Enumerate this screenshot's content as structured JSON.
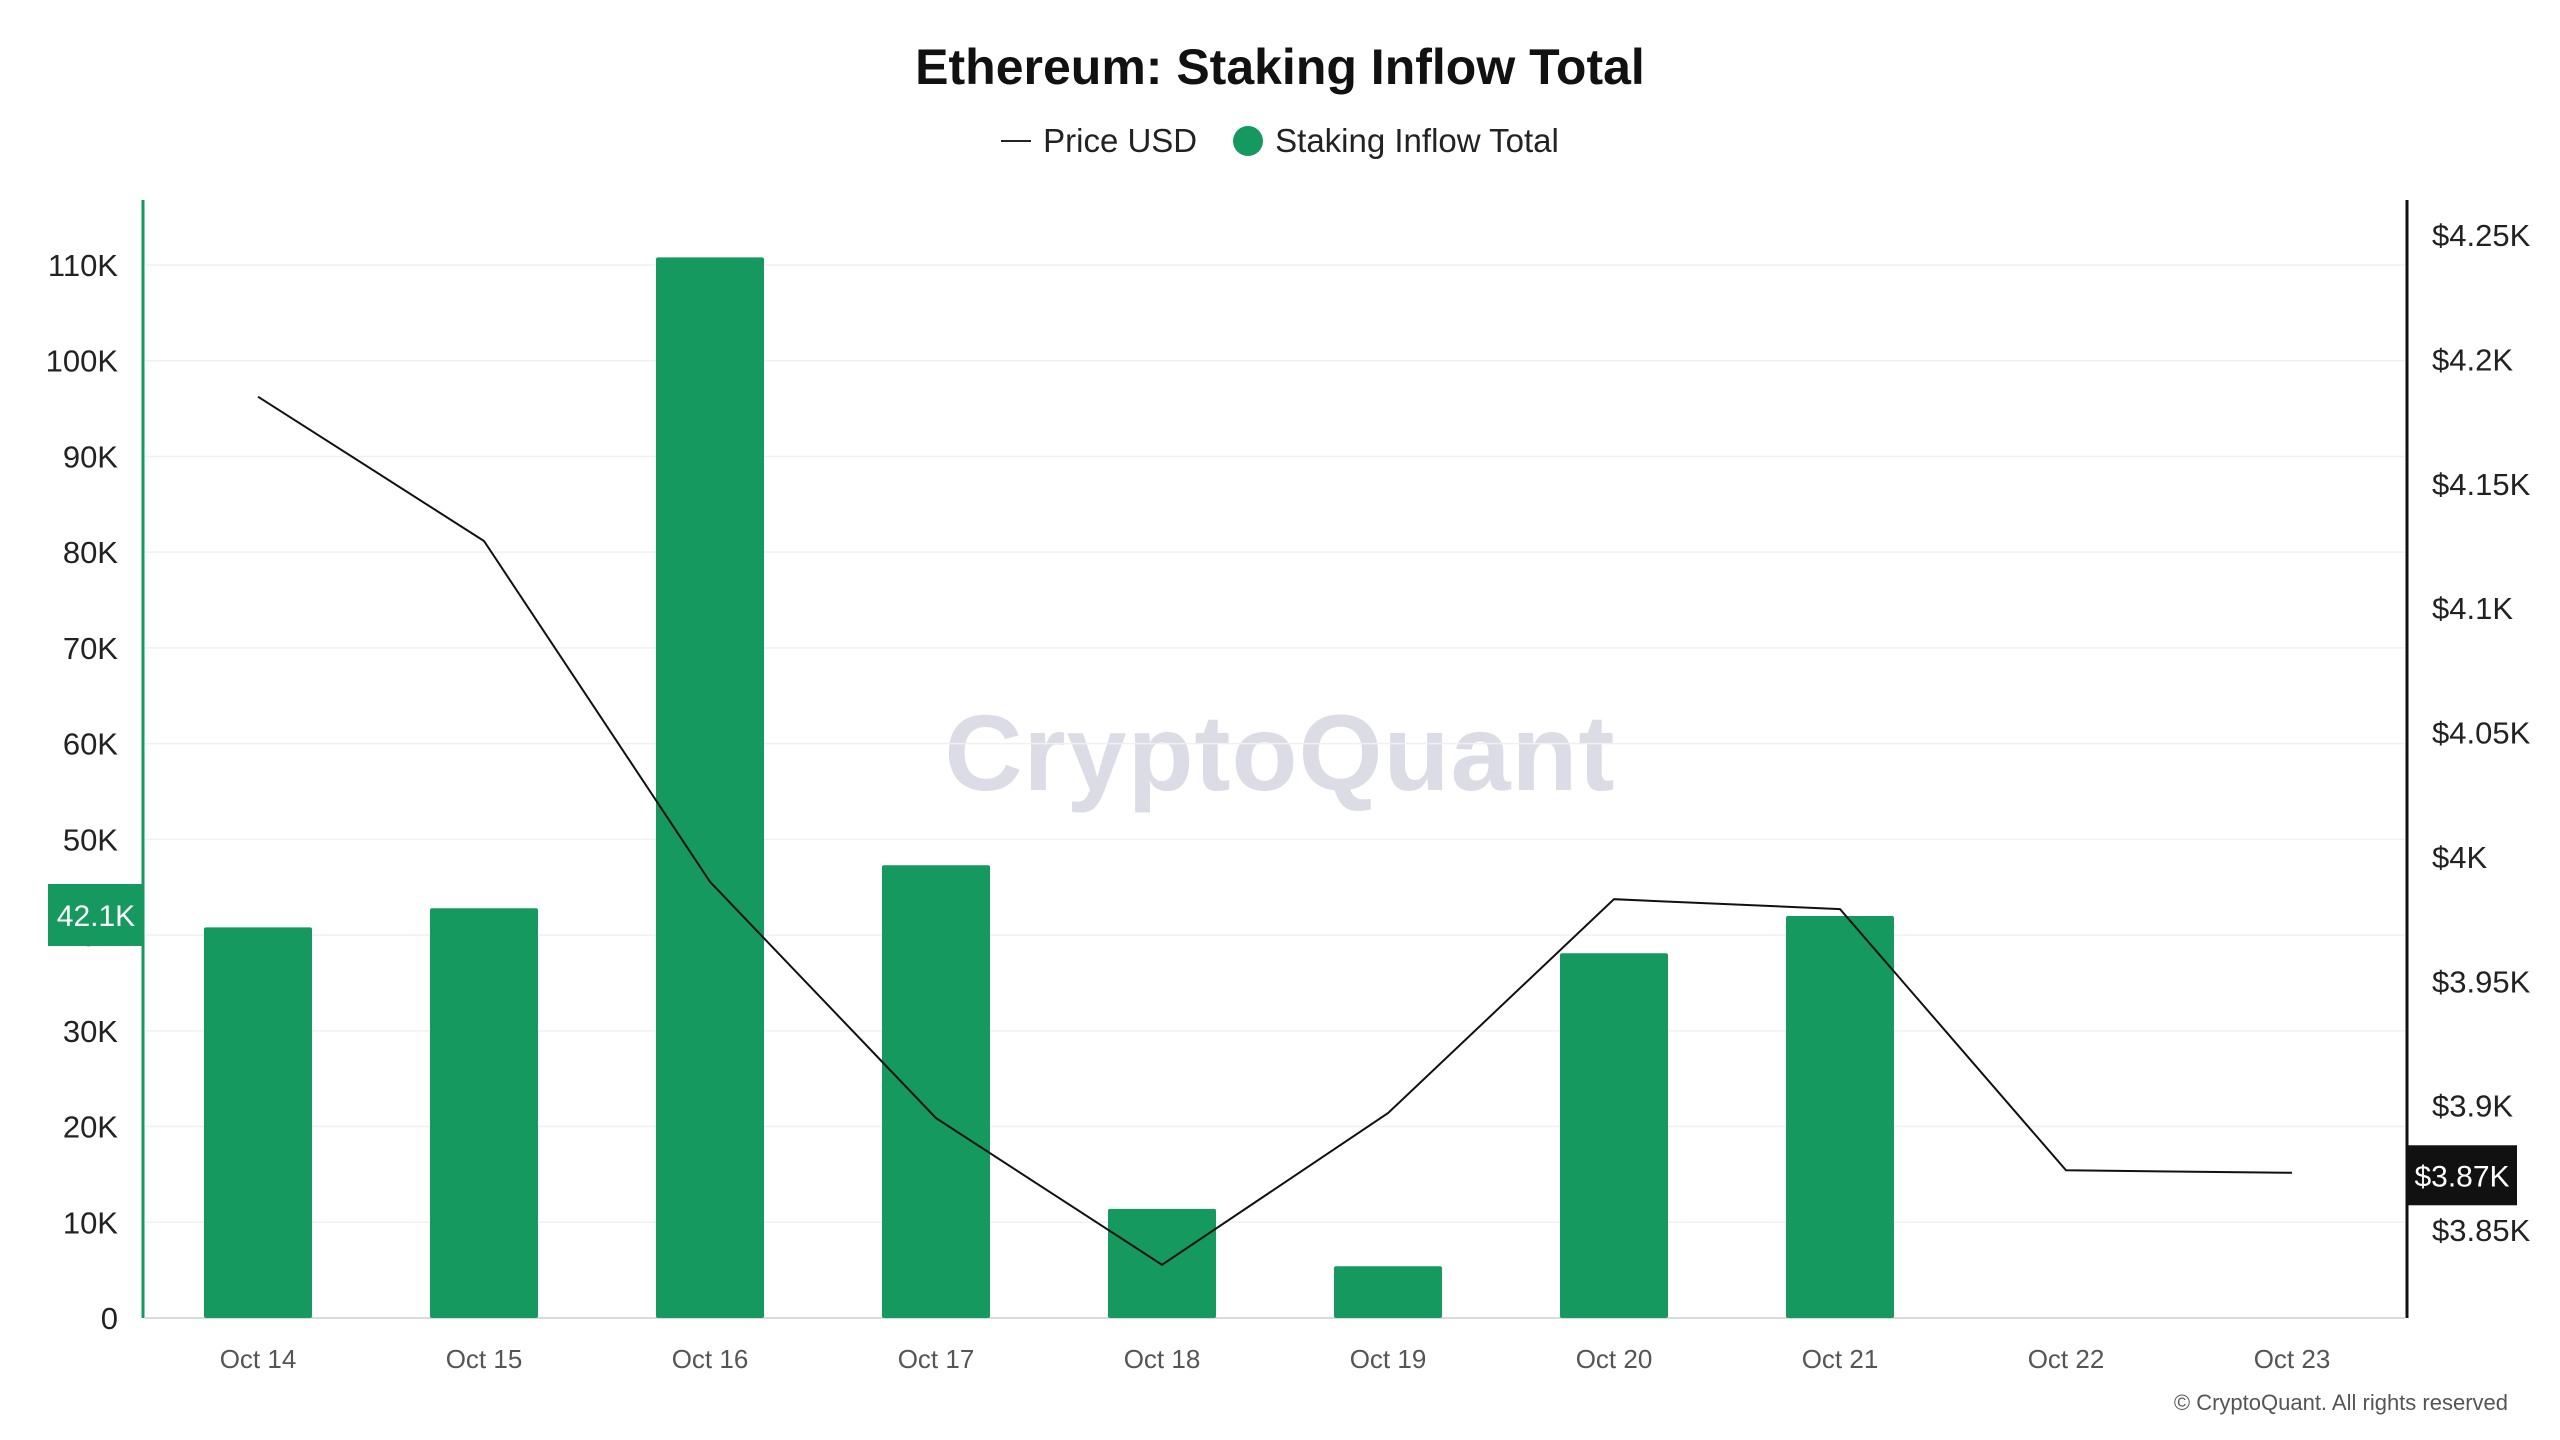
{
  "chart_data": {
    "type": "bar",
    "title": "Ethereum: Staking Inflow Total",
    "categories": [
      "Oct 14",
      "Oct 15",
      "Oct 16",
      "Oct 17",
      "Oct 18",
      "Oct 19",
      "Oct 20",
      "Oct 21",
      "Oct 22",
      "Oct 23"
    ],
    "series": [
      {
        "name": "Staking Inflow Total",
        "type": "bar",
        "axis": "left",
        "color": "#15995e",
        "values": [
          40800,
          42800,
          110800,
          47300,
          11400,
          5400,
          38100,
          42000,
          null,
          null
        ]
      },
      {
        "name": "Price USD",
        "type": "line",
        "axis": "right",
        "color": "#111111",
        "values": [
          4185,
          4127,
          3990,
          3895,
          3836,
          3897,
          3983,
          3979,
          3874,
          3873
        ]
      }
    ],
    "legend": [
      "Price USD",
      "Staking Inflow Total"
    ],
    "legend_position": "top-center",
    "left_axis": {
      "ylim": [
        0,
        116000
      ],
      "ticks": [
        0,
        10000,
        20000,
        30000,
        40000,
        50000,
        60000,
        70000,
        80000,
        90000,
        100000,
        110000
      ],
      "tick_labels": [
        "0",
        "10K",
        "20K",
        "30K",
        "40K",
        "50K",
        "60K",
        "70K",
        "80K",
        "90K",
        "100K",
        "110K"
      ],
      "color": "#15995e",
      "badge_label": "42.1K",
      "badge_value": 42100
    },
    "right_axis": {
      "ylim": [
        3813,
        4275
      ],
      "ticks": [
        3850,
        3900,
        3950,
        4000,
        4050,
        4100,
        4150,
        4200,
        4250
      ],
      "tick_labels": [
        "$3.85K",
        "$3.9K",
        "$3.95K",
        "$4K",
        "$4.05K",
        "$4.1K",
        "$4.15K",
        "$4.2K",
        "$4.25K"
      ],
      "color": "#111111",
      "badge_label": "$3.87K",
      "badge_value": 3872
    },
    "grid": true
  },
  "watermark": "CryptoQuant",
  "copyright": "© CryptoQuant. All rights reserved"
}
